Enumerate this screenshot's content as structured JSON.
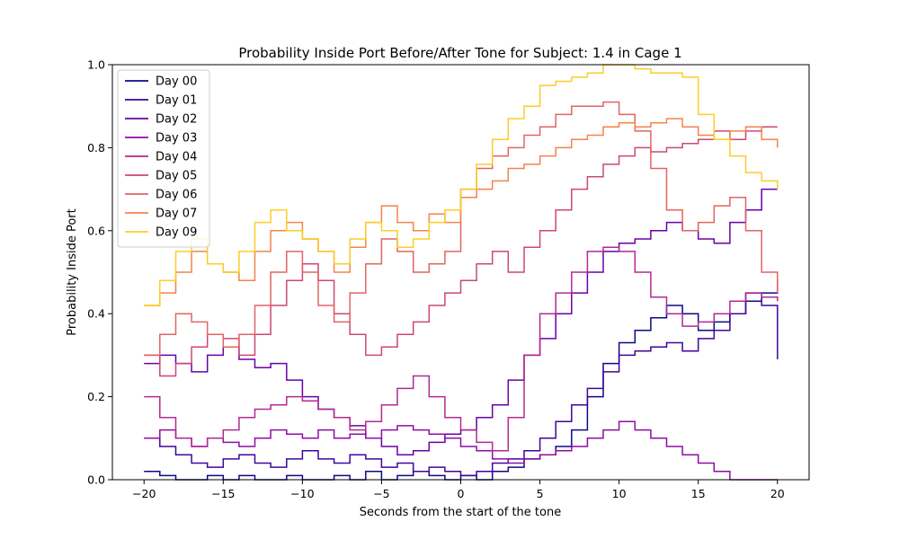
{
  "chart_data": {
    "type": "line",
    "title": "Probability Inside Port Before/After Tone for Subject: 1.4 in Cage 1",
    "xlabel": "Seconds from the start of the tone",
    "ylabel": "Probability Inside Port",
    "xlim": [
      -22,
      22
    ],
    "ylim": [
      0,
      1
    ],
    "xticks": [
      -20,
      -15,
      -10,
      -5,
      0,
      5,
      10,
      15,
      20
    ],
    "yticks": [
      0.0,
      0.2,
      0.4,
      0.6,
      0.8,
      1.0
    ],
    "xtick_labels": [
      "−20",
      "−15",
      "−10",
      "−5",
      "0",
      "5",
      "10",
      "15",
      "20"
    ],
    "ytick_labels": [
      "0.0",
      "0.2",
      "0.4",
      "0.6",
      "0.8",
      "1.0"
    ],
    "grid": false,
    "legend_position": "top-left",
    "series": [
      {
        "name": "Day 00",
        "color": "#0d0887",
        "x": [
          -20,
          -19,
          -18,
          -17,
          -16,
          -15,
          -14,
          -13,
          -12,
          -11,
          -10,
          -9,
          -8,
          -7,
          -6,
          -5,
          -4,
          -3,
          -2,
          -1,
          0,
          1,
          2,
          3,
          4,
          5,
          6,
          7,
          8,
          9,
          10,
          11,
          12,
          13,
          14,
          15,
          16,
          17,
          18,
          19,
          20
        ],
        "y": [
          0.02,
          0.01,
          0.0,
          0.0,
          0.01,
          0.0,
          0.01,
          0.0,
          0.0,
          0.01,
          0.0,
          0.0,
          0.01,
          0.0,
          0.02,
          0.0,
          0.01,
          0.02,
          0.01,
          0.0,
          0.01,
          0.0,
          0.02,
          0.03,
          0.05,
          0.06,
          0.08,
          0.12,
          0.2,
          0.28,
          0.33,
          0.36,
          0.39,
          0.42,
          0.4,
          0.36,
          0.38,
          0.4,
          0.43,
          0.45,
          0.48
        ]
      },
      {
        "name": "Day 01",
        "color": "#41049d",
        "x": [
          -20,
          -19,
          -18,
          -17,
          -16,
          -15,
          -14,
          -13,
          -12,
          -11,
          -10,
          -9,
          -8,
          -7,
          -6,
          -5,
          -4,
          -3,
          -2,
          -1,
          0,
          1,
          2,
          3,
          4,
          5,
          6,
          7,
          8,
          9,
          10,
          11,
          12,
          13,
          14,
          15,
          16,
          17,
          18,
          19,
          20
        ],
        "y": [
          0.1,
          0.08,
          0.06,
          0.04,
          0.03,
          0.05,
          0.06,
          0.04,
          0.03,
          0.05,
          0.07,
          0.05,
          0.04,
          0.06,
          0.05,
          0.03,
          0.04,
          0.02,
          0.03,
          0.02,
          0.01,
          0.02,
          0.04,
          0.05,
          0.07,
          0.1,
          0.14,
          0.18,
          0.22,
          0.26,
          0.3,
          0.31,
          0.32,
          0.33,
          0.31,
          0.34,
          0.36,
          0.4,
          0.45,
          0.42,
          0.29
        ]
      },
      {
        "name": "Day 02",
        "color": "#6a00a8",
        "x": [
          -20,
          -19,
          -18,
          -17,
          -16,
          -15,
          -14,
          -13,
          -12,
          -11,
          -10,
          -9,
          -8,
          -7,
          -6,
          -5,
          -4,
          -3,
          -2,
          -1,
          0,
          1,
          2,
          3,
          4,
          5,
          6,
          7,
          8,
          9,
          10,
          11,
          12,
          13,
          14,
          15,
          16,
          17,
          18,
          19,
          20
        ],
        "y": [
          0.28,
          0.3,
          0.28,
          0.26,
          0.3,
          0.32,
          0.29,
          0.27,
          0.28,
          0.24,
          0.2,
          0.17,
          0.15,
          0.13,
          0.1,
          0.08,
          0.06,
          0.07,
          0.09,
          0.11,
          0.12,
          0.15,
          0.18,
          0.24,
          0.3,
          0.34,
          0.4,
          0.45,
          0.5,
          0.55,
          0.57,
          0.58,
          0.6,
          0.62,
          0.6,
          0.58,
          0.57,
          0.62,
          0.65,
          0.7,
          0.7
        ]
      },
      {
        "name": "Day 03",
        "color": "#8f0da4",
        "x": [
          -20,
          -19,
          -18,
          -17,
          -16,
          -15,
          -14,
          -13,
          -12,
          -11,
          -10,
          -9,
          -8,
          -7,
          -6,
          -5,
          -4,
          -3,
          -2,
          -1,
          0,
          1,
          2,
          3,
          4,
          5,
          6,
          7,
          8,
          9,
          10,
          11,
          12,
          13,
          14,
          15,
          16,
          17,
          18,
          19,
          20
        ],
        "y": [
          0.1,
          0.12,
          0.1,
          0.08,
          0.1,
          0.09,
          0.08,
          0.1,
          0.12,
          0.11,
          0.1,
          0.12,
          0.1,
          0.11,
          0.1,
          0.12,
          0.13,
          0.12,
          0.11,
          0.1,
          0.08,
          0.07,
          0.05,
          0.04,
          0.05,
          0.06,
          0.07,
          0.08,
          0.1,
          0.12,
          0.14,
          0.12,
          0.1,
          0.08,
          0.06,
          0.04,
          0.02,
          0.0,
          0.0,
          0.0,
          0.0
        ]
      },
      {
        "name": "Day 04",
        "color": "#b12a90",
        "x": [
          -20,
          -19,
          -18,
          -17,
          -16,
          -15,
          -14,
          -13,
          -12,
          -11,
          -10,
          -9,
          -8,
          -7,
          -6,
          -5,
          -4,
          -3,
          -2,
          -1,
          0,
          1,
          2,
          3,
          4,
          5,
          6,
          7,
          8,
          9,
          10,
          11,
          12,
          13,
          14,
          15,
          16,
          17,
          18,
          19,
          20
        ],
        "y": [
          0.2,
          0.15,
          0.1,
          0.08,
          0.1,
          0.12,
          0.15,
          0.17,
          0.18,
          0.2,
          0.19,
          0.17,
          0.15,
          0.12,
          0.14,
          0.18,
          0.22,
          0.25,
          0.2,
          0.15,
          0.12,
          0.09,
          0.07,
          0.15,
          0.3,
          0.4,
          0.45,
          0.5,
          0.55,
          0.56,
          0.55,
          0.5,
          0.44,
          0.4,
          0.37,
          0.38,
          0.4,
          0.43,
          0.45,
          0.44,
          0.43
        ]
      },
      {
        "name": "Day 05",
        "color": "#cc4778",
        "x": [
          -20,
          -19,
          -18,
          -17,
          -16,
          -15,
          -14,
          -13,
          -12,
          -11,
          -10,
          -9,
          -8,
          -7,
          -6,
          -5,
          -4,
          -3,
          -2,
          -1,
          0,
          1,
          2,
          3,
          4,
          5,
          6,
          7,
          8,
          9,
          10,
          11,
          12,
          13,
          14,
          15,
          16,
          17,
          18,
          19,
          20
        ],
        "y": [
          0.3,
          0.25,
          0.28,
          0.32,
          0.35,
          0.34,
          0.3,
          0.35,
          0.42,
          0.48,
          0.52,
          0.48,
          0.4,
          0.35,
          0.3,
          0.32,
          0.35,
          0.38,
          0.42,
          0.45,
          0.48,
          0.52,
          0.55,
          0.5,
          0.56,
          0.6,
          0.65,
          0.7,
          0.73,
          0.76,
          0.78,
          0.8,
          0.79,
          0.8,
          0.81,
          0.82,
          0.84,
          0.82,
          0.84,
          0.85,
          0.85
        ]
      },
      {
        "name": "Day 06",
        "color": "#e16462",
        "x": [
          -20,
          -19,
          -18,
          -17,
          -16,
          -15,
          -14,
          -13,
          -12,
          -11,
          -10,
          -9,
          -8,
          -7,
          -6,
          -5,
          -4,
          -3,
          -2,
          -1,
          0,
          1,
          2,
          3,
          4,
          5,
          6,
          7,
          8,
          9,
          10,
          11,
          12,
          13,
          14,
          15,
          16,
          17,
          18,
          19,
          20
        ],
        "y": [
          0.3,
          0.35,
          0.4,
          0.38,
          0.35,
          0.32,
          0.35,
          0.42,
          0.5,
          0.55,
          0.5,
          0.42,
          0.38,
          0.45,
          0.52,
          0.58,
          0.55,
          0.5,
          0.52,
          0.55,
          0.7,
          0.75,
          0.78,
          0.8,
          0.83,
          0.85,
          0.88,
          0.9,
          0.9,
          0.91,
          0.88,
          0.84,
          0.75,
          0.65,
          0.6,
          0.62,
          0.66,
          0.68,
          0.6,
          0.5,
          0.45
        ]
      },
      {
        "name": "Day 07",
        "color": "#f2844b",
        "x": [
          -20,
          -19,
          -18,
          -17,
          -16,
          -15,
          -14,
          -13,
          -12,
          -11,
          -10,
          -9,
          -8,
          -7,
          -6,
          -5,
          -4,
          -3,
          -2,
          -1,
          0,
          1,
          2,
          3,
          4,
          5,
          6,
          7,
          8,
          9,
          10,
          11,
          12,
          13,
          14,
          15,
          16,
          17,
          18,
          19,
          20
        ],
        "y": [
          0.42,
          0.45,
          0.5,
          0.55,
          0.52,
          0.5,
          0.48,
          0.55,
          0.6,
          0.62,
          0.58,
          0.55,
          0.5,
          0.56,
          0.62,
          0.66,
          0.62,
          0.6,
          0.64,
          0.62,
          0.68,
          0.7,
          0.72,
          0.75,
          0.76,
          0.78,
          0.8,
          0.82,
          0.83,
          0.85,
          0.86,
          0.85,
          0.86,
          0.87,
          0.85,
          0.83,
          0.82,
          0.84,
          0.85,
          0.82,
          0.8
        ]
      },
      {
        "name": "Day 09",
        "color": "#fcce25",
        "x": [
          -20,
          -19,
          -18,
          -17,
          -16,
          -15,
          -14,
          -13,
          -12,
          -11,
          -10,
          -9,
          -8,
          -7,
          -6,
          -5,
          -4,
          -3,
          -2,
          -1,
          0,
          1,
          2,
          3,
          4,
          5,
          6,
          7,
          8,
          9,
          10,
          11,
          12,
          13,
          14,
          15,
          16,
          17,
          18,
          19,
          20
        ],
        "y": [
          0.42,
          0.48,
          0.55,
          0.58,
          0.52,
          0.5,
          0.55,
          0.62,
          0.65,
          0.6,
          0.58,
          0.55,
          0.52,
          0.58,
          0.62,
          0.6,
          0.56,
          0.58,
          0.62,
          0.65,
          0.7,
          0.76,
          0.82,
          0.87,
          0.9,
          0.95,
          0.96,
          0.97,
          0.98,
          1.0,
          1.0,
          0.99,
          0.98,
          0.98,
          0.97,
          0.88,
          0.82,
          0.78,
          0.74,
          0.72,
          0.7
        ]
      }
    ]
  }
}
